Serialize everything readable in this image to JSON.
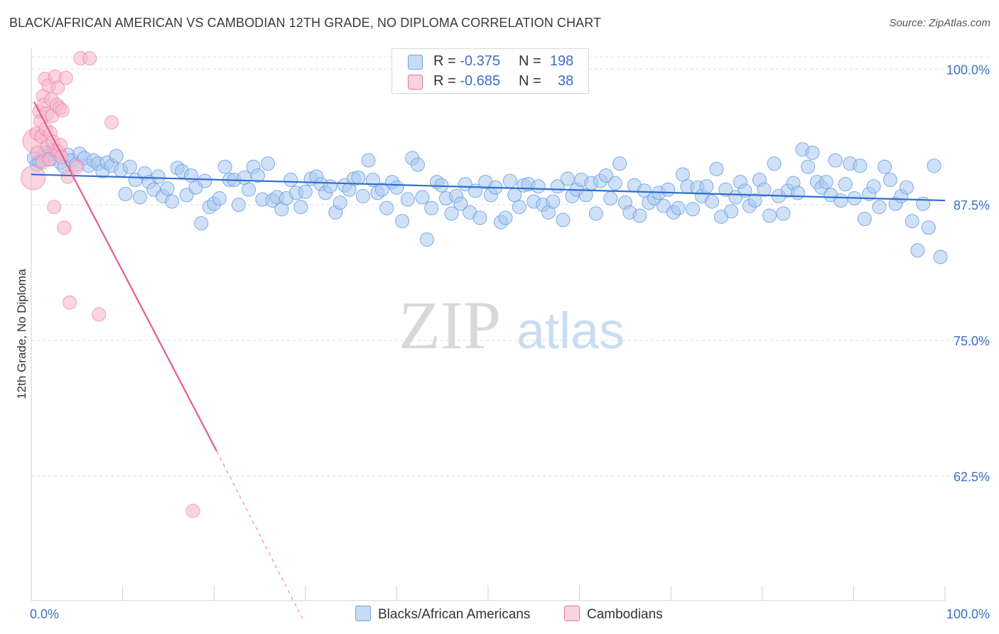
{
  "title": "BLACK/AFRICAN AMERICAN VS CAMBODIAN 12TH GRADE, NO DIPLOMA CORRELATION CHART",
  "source": "Source: ZipAtlas.com",
  "watermark": {
    "zip": "ZIP",
    "atlas": "atlas"
  },
  "legend": {
    "rows": [
      {
        "r_label": "R = ",
        "r_value": "-0.375",
        "n_label": "N = ",
        "n_value": "198",
        "color": "#a9c8f0"
      },
      {
        "r_label": "R = ",
        "r_value": "-0.685",
        "n_label": "N = ",
        "n_value": "38",
        "color": "#f7b8cc"
      }
    ]
  },
  "bottom_legend": [
    {
      "label": "Blacks/African Americans",
      "color": "#a9c8f0"
    },
    {
      "label": "Cambodians",
      "color": "#f7b8cc"
    }
  ],
  "chart_data": {
    "type": "scatter",
    "title": "BLACK/AFRICAN AMERICAN VS CAMBODIAN 12TH GRADE, NO DIPLOMA CORRELATION CHART",
    "xlabel": "",
    "ylabel": "12th Grade, No Diploma",
    "xlim": [
      0,
      100
    ],
    "ylim": [
      50,
      101
    ],
    "x_tick_labels": [
      "0.0%",
      "100.0%"
    ],
    "y_ticks": [
      100,
      87.5,
      75,
      62.5
    ],
    "y_tick_labels": [
      "100.0%",
      "87.5%",
      "75.0%",
      "62.5%"
    ],
    "grid": true,
    "legend_placement": "top-center",
    "series": [
      {
        "name": "Blacks/African Americans",
        "color": "#6fa3e6",
        "fill": "#a9c8f0",
        "trend": {
          "x": [
            0,
            100
          ],
          "y": [
            90.3,
            87.9
          ]
        },
        "points": [
          [
            0.3,
            91.8
          ],
          [
            0.6,
            91.2
          ],
          [
            0.9,
            91.5
          ],
          [
            1.2,
            91.6
          ],
          [
            1.5,
            92.3
          ],
          [
            1.8,
            92.0
          ],
          [
            2.1,
            91.7
          ],
          [
            2.4,
            92.6
          ],
          [
            2.8,
            92.2
          ],
          [
            3.2,
            91.4
          ],
          [
            3.6,
            91.0
          ],
          [
            4.0,
            92.1
          ],
          [
            4.4,
            91.6
          ],
          [
            4.9,
            91.2
          ],
          [
            5.3,
            92.2
          ],
          [
            5.8,
            91.8
          ],
          [
            6.3,
            91.1
          ],
          [
            6.8,
            91.6
          ],
          [
            7.3,
            91.3
          ],
          [
            7.8,
            90.6
          ],
          [
            8.3,
            91.4
          ],
          [
            8.8,
            91.1
          ],
          [
            9.3,
            92.0
          ],
          [
            9.8,
            90.7
          ],
          [
            10.3,
            88.5
          ],
          [
            10.8,
            91.0
          ],
          [
            11.4,
            89.8
          ],
          [
            11.9,
            88.2
          ],
          [
            12.4,
            90.4
          ],
          [
            12.9,
            89.6
          ],
          [
            13.4,
            88.9
          ],
          [
            13.9,
            90.1
          ],
          [
            14.4,
            88.3
          ],
          [
            14.9,
            89.0
          ],
          [
            15.4,
            87.8
          ],
          [
            16.0,
            90.9
          ],
          [
            16.5,
            90.6
          ],
          [
            17.0,
            88.4
          ],
          [
            17.5,
            90.2
          ],
          [
            18.0,
            89.1
          ],
          [
            18.6,
            85.8
          ],
          [
            19.0,
            89.7
          ],
          [
            19.5,
            87.3
          ],
          [
            20.0,
            87.6
          ],
          [
            20.6,
            88.1
          ],
          [
            21.2,
            91.0
          ],
          [
            21.7,
            89.8
          ],
          [
            22.2,
            89.8
          ],
          [
            22.7,
            87.5
          ],
          [
            23.3,
            90.0
          ],
          [
            23.8,
            88.9
          ],
          [
            24.3,
            91.0
          ],
          [
            24.8,
            90.2
          ],
          [
            25.3,
            88.0
          ],
          [
            25.9,
            91.3
          ],
          [
            26.4,
            87.9
          ],
          [
            26.9,
            88.2
          ],
          [
            27.4,
            87.1
          ],
          [
            27.9,
            88.1
          ],
          [
            28.4,
            89.8
          ],
          [
            29.0,
            88.6
          ],
          [
            29.5,
            87.3
          ],
          [
            30.0,
            88.7
          ],
          [
            30.6,
            89.9
          ],
          [
            31.2,
            90.1
          ],
          [
            31.7,
            89.4
          ],
          [
            32.2,
            88.6
          ],
          [
            32.7,
            89.2
          ],
          [
            33.3,
            86.8
          ],
          [
            33.8,
            87.7
          ],
          [
            34.3,
            89.3
          ],
          [
            34.8,
            88.9
          ],
          [
            35.3,
            89.9
          ],
          [
            35.8,
            90.0
          ],
          [
            36.3,
            88.3
          ],
          [
            36.9,
            91.6
          ],
          [
            37.4,
            89.8
          ],
          [
            37.9,
            88.6
          ],
          [
            38.4,
            88.9
          ],
          [
            38.9,
            87.2
          ],
          [
            39.5,
            89.6
          ],
          [
            40.0,
            89.1
          ],
          [
            40.6,
            86.0
          ],
          [
            41.2,
            88.0
          ],
          [
            41.7,
            91.8
          ],
          [
            42.3,
            91.2
          ],
          [
            42.8,
            88.2
          ],
          [
            43.3,
            84.3
          ],
          [
            43.8,
            87.2
          ],
          [
            44.4,
            89.6
          ],
          [
            44.9,
            89.3
          ],
          [
            45.4,
            88.1
          ],
          [
            46.0,
            86.7
          ],
          [
            46.5,
            88.3
          ],
          [
            47.0,
            87.6
          ],
          [
            47.5,
            89.4
          ],
          [
            48.0,
            86.8
          ],
          [
            48.6,
            88.8
          ],
          [
            49.1,
            86.3
          ],
          [
            49.7,
            89.6
          ],
          [
            50.3,
            88.4
          ],
          [
            50.8,
            89.1
          ],
          [
            51.4,
            85.9
          ],
          [
            51.9,
            86.3
          ],
          [
            52.4,
            89.7
          ],
          [
            52.9,
            88.4
          ],
          [
            53.4,
            87.3
          ],
          [
            53.9,
            89.3
          ],
          [
            54.4,
            89.4
          ],
          [
            55.0,
            87.8
          ],
          [
            55.5,
            89.2
          ],
          [
            56.0,
            87.5
          ],
          [
            56.6,
            86.8
          ],
          [
            57.1,
            87.8
          ],
          [
            57.6,
            89.2
          ],
          [
            58.2,
            86.1
          ],
          [
            58.7,
            89.9
          ],
          [
            59.2,
            88.3
          ],
          [
            59.7,
            88.9
          ],
          [
            60.2,
            89.8
          ],
          [
            60.7,
            88.4
          ],
          [
            61.3,
            89.5
          ],
          [
            61.8,
            86.7
          ],
          [
            62.3,
            89.7
          ],
          [
            62.9,
            90.2
          ],
          [
            63.4,
            88.1
          ],
          [
            63.9,
            89.5
          ],
          [
            64.4,
            91.3
          ],
          [
            65.0,
            87.7
          ],
          [
            65.5,
            86.8
          ],
          [
            66.0,
            89.3
          ],
          [
            66.6,
            86.5
          ],
          [
            67.1,
            88.8
          ],
          [
            67.6,
            87.7
          ],
          [
            68.2,
            88.1
          ],
          [
            68.7,
            88.6
          ],
          [
            69.2,
            87.4
          ],
          [
            69.7,
            88.9
          ],
          [
            70.3,
            86.8
          ],
          [
            70.8,
            87.2
          ],
          [
            71.3,
            90.3
          ],
          [
            71.8,
            89.2
          ],
          [
            72.4,
            87.1
          ],
          [
            72.9,
            89.1
          ],
          [
            73.4,
            88.3
          ],
          [
            73.9,
            89.2
          ],
          [
            74.5,
            87.8
          ],
          [
            75.0,
            90.8
          ],
          [
            75.5,
            86.4
          ],
          [
            76.0,
            88.9
          ],
          [
            76.6,
            86.9
          ],
          [
            77.1,
            88.2
          ],
          [
            77.6,
            89.6
          ],
          [
            78.1,
            88.8
          ],
          [
            78.6,
            87.4
          ],
          [
            79.2,
            87.9
          ],
          [
            79.7,
            89.8
          ],
          [
            80.2,
            88.9
          ],
          [
            80.8,
            86.5
          ],
          [
            81.3,
            91.3
          ],
          [
            81.8,
            88.3
          ],
          [
            82.3,
            86.7
          ],
          [
            82.8,
            88.8
          ],
          [
            83.4,
            89.5
          ],
          [
            83.9,
            88.6
          ],
          [
            84.4,
            92.6
          ],
          [
            85.0,
            91.0
          ],
          [
            85.5,
            92.3
          ],
          [
            86.0,
            89.6
          ],
          [
            86.5,
            89.1
          ],
          [
            87.0,
            89.6
          ],
          [
            87.5,
            88.4
          ],
          [
            88.0,
            91.6
          ],
          [
            88.6,
            87.9
          ],
          [
            89.1,
            89.4
          ],
          [
            89.6,
            91.3
          ],
          [
            90.1,
            88.1
          ],
          [
            90.7,
            91.1
          ],
          [
            91.2,
            86.2
          ],
          [
            91.7,
            88.5
          ],
          [
            92.2,
            89.2
          ],
          [
            92.8,
            87.3
          ],
          [
            93.4,
            91.0
          ],
          [
            94.0,
            89.8
          ],
          [
            94.6,
            87.6
          ],
          [
            95.2,
            88.3
          ],
          [
            95.8,
            89.1
          ],
          [
            96.4,
            86.0
          ],
          [
            97.0,
            83.3
          ],
          [
            97.6,
            87.6
          ],
          [
            98.2,
            85.4
          ],
          [
            98.8,
            91.1
          ],
          [
            99.5,
            82.7
          ]
        ]
      },
      {
        "name": "Cambodians",
        "color": "#e8729b",
        "fill": "#f7b8cc",
        "trend": {
          "x": [
            0.3,
            20.3
          ],
          "y": [
            97.0,
            64.8
          ]
        },
        "trend_dashed": {
          "x": [
            20.3,
            29.8
          ],
          "y": [
            64.8,
            49.2
          ]
        },
        "points": [
          [
            0.2,
            90.0
          ],
          [
            0.4,
            93.4
          ],
          [
            0.6,
            94.1
          ],
          [
            0.7,
            92.3
          ],
          [
            0.9,
            96.1
          ],
          [
            1.0,
            95.2
          ],
          [
            1.1,
            93.8
          ],
          [
            1.2,
            91.4
          ],
          [
            1.3,
            97.5
          ],
          [
            1.4,
            96.7
          ],
          [
            1.5,
            99.1
          ],
          [
            1.6,
            94.5
          ],
          [
            1.7,
            95.9
          ],
          [
            1.8,
            92.9
          ],
          [
            1.9,
            98.5
          ],
          [
            2.0,
            91.7
          ],
          [
            2.1,
            94.1
          ],
          [
            2.2,
            97.2
          ],
          [
            2.3,
            95.7
          ],
          [
            2.4,
            93.3
          ],
          [
            2.5,
            87.3
          ],
          [
            2.6,
            99.3
          ],
          [
            2.7,
            92.5
          ],
          [
            2.8,
            96.7
          ],
          [
            2.9,
            98.3
          ],
          [
            3.0,
            92.4
          ],
          [
            3.1,
            96.4
          ],
          [
            3.2,
            93.0
          ],
          [
            3.3,
            91.9
          ],
          [
            3.4,
            96.2
          ],
          [
            3.6,
            85.4
          ],
          [
            3.8,
            99.2
          ],
          [
            4.0,
            90.1
          ],
          [
            4.2,
            78.5
          ],
          [
            5.0,
            91.0
          ],
          [
            5.4,
            101.0
          ],
          [
            6.4,
            101.0
          ],
          [
            7.4,
            77.4
          ],
          [
            8.8,
            95.1
          ],
          [
            17.7,
            59.3
          ]
        ]
      }
    ]
  }
}
